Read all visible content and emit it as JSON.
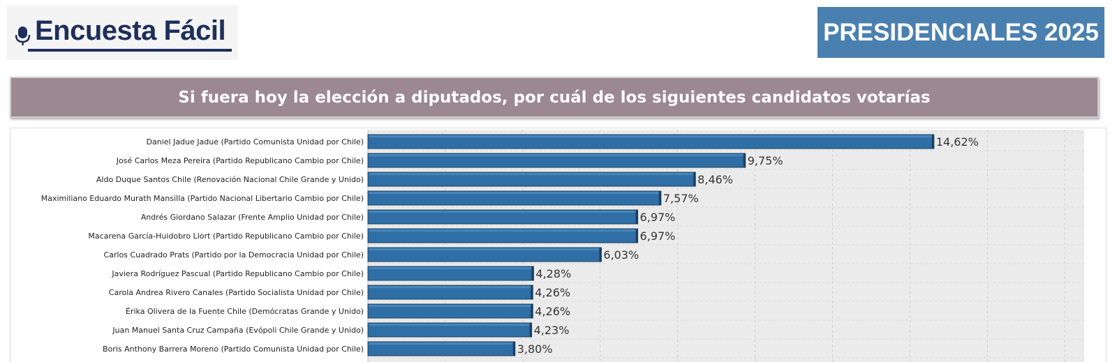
{
  "header": {
    "logo_text": "Encuesta Fácil",
    "badge_text": "PRESIDENCIALES 2025"
  },
  "question": {
    "text": "Si fuera hoy la elección a diputados, por cuál de los siguientes candidatos votarías"
  },
  "colors": {
    "bar": "#2f6fa6",
    "bar_edge": "#1a3f60",
    "badge": "#4a80b0",
    "banner": "#9b8890",
    "plot_bg": "#ebebeb"
  },
  "chart_data": {
    "type": "bar",
    "orientation": "horizontal",
    "categories": [
      "Daniel Jadue Jadue (Partido Comunista Unidad por Chile)",
      "José Carlos Meza Pereira (Partido Republicano Cambio por Chile)",
      "Aldo Duque Santos Chile (Renovación Nacional Chile Grande y Unido)",
      "Maximiliano Eduardo Murath Mansilla (Partido Nacional Libertario Cambio por Chile)",
      "Andrés Giordano Salazar (Frente Amplio Unidad por Chile)",
      "Macarena García-Huidobro Llort (Partido Republicano Cambio por Chile)",
      "Carlos Cuadrado Prats (Partido por la Democracia Unidad por Chile)",
      "Javiera Rodríguez Pascual (Partido Republicano Cambio por Chile)",
      "Carola Andrea Rivero Canales (Partido Socialista Unidad por Chile)",
      "Érika Olivera de la Fuente Chile (Demócratas Grande y Unido)",
      "Juan Manuel Santa Cruz Campaña (Evópoli Chile Grande y Unido)",
      "Boris Anthony Barrera Moreno (Partido Comunista Unidad por Chile)"
    ],
    "values": [
      14.62,
      9.75,
      8.46,
      7.57,
      6.97,
      6.97,
      6.03,
      4.28,
      4.26,
      4.26,
      4.23,
      3.8
    ],
    "value_labels": [
      "14,62%",
      "9,75%",
      "8,46%",
      "7,57%",
      "6,97%",
      "6,97%",
      "6,03%",
      "4,28%",
      "4,26%",
      "4,26%",
      "4,23%",
      "3,80%"
    ],
    "xlim": [
      0,
      18.5
    ],
    "grid": true,
    "legend": "none"
  }
}
